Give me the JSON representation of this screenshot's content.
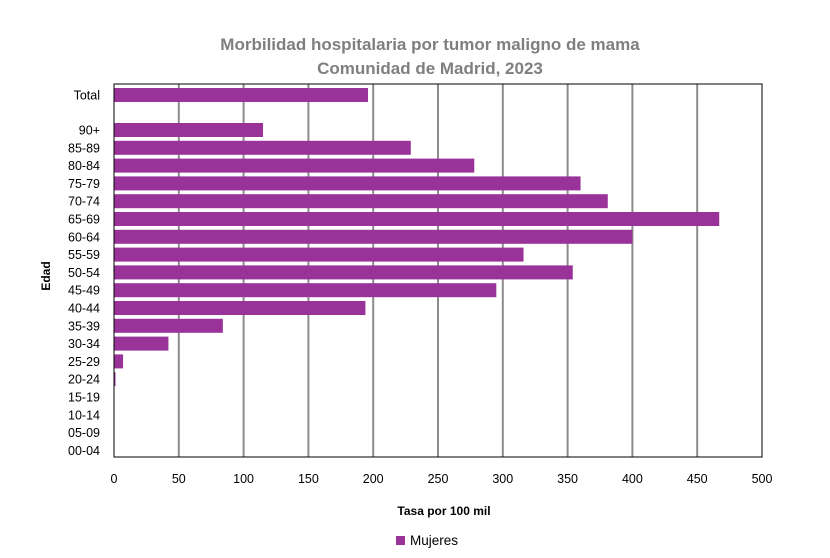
{
  "chart_data": {
    "type": "bar",
    "orientation": "horizontal",
    "title": "Morbilidad hospitalaria por tumor maligno de mama",
    "subtitle": "Comunidad de Madrid, 2023",
    "xlabel": "Tasa por 100 mil",
    "ylabel": "Edad",
    "xlim": [
      0,
      500
    ],
    "xticks": [
      "0",
      "50",
      "100",
      "150",
      "200",
      "250",
      "300",
      "350",
      "400",
      "450",
      "500"
    ],
    "grid": "vertical",
    "legend": "bottom",
    "categories": [
      "Total",
      "90+",
      "85-89",
      "80-84",
      "75-79",
      "70-74",
      "65-69",
      "60-64",
      "55-59",
      "50-54",
      "45-49",
      "40-44",
      "35-39",
      "30-34",
      "25-29",
      "20-24",
      "15-19",
      "10-14",
      "05-09",
      "00-04"
    ],
    "series": [
      {
        "name": "Mujeres",
        "color": "#993399",
        "values": [
          196,
          115,
          229,
          278,
          360,
          381,
          467,
          400,
          316,
          354,
          295,
          194,
          84,
          42,
          7,
          1,
          0,
          0,
          0,
          0
        ]
      }
    ]
  }
}
